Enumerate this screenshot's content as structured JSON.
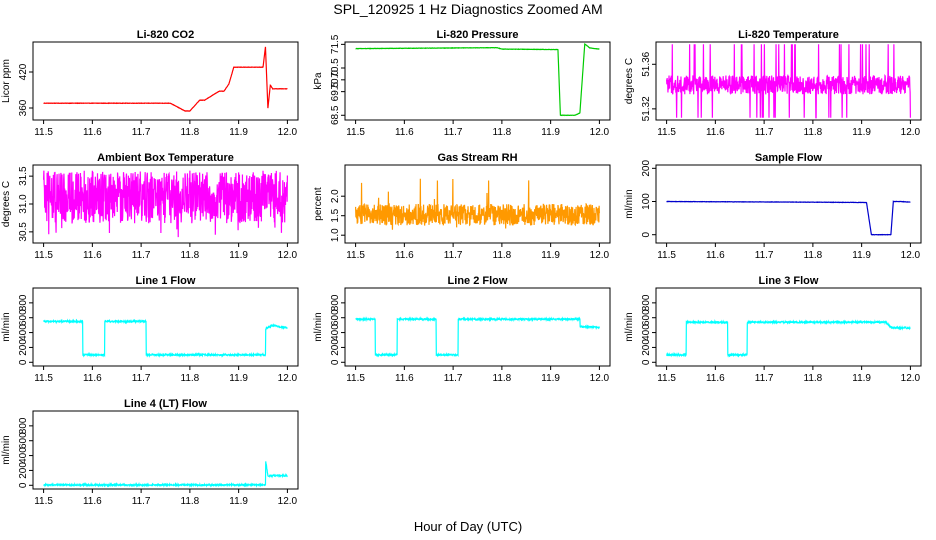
{
  "title": "SPL_120925  1 Hz Diagnostics Zoomed AM",
  "xlabel": "Hour of Day (UTC)",
  "chart_data": [
    {
      "type": "line",
      "title": "Li-820 CO2",
      "ylabel": "Licor ppm",
      "color": "#ff0000",
      "xlim": [
        11.5,
        12.0
      ],
      "ylim": [
        340,
        470
      ],
      "xticks": [
        "11.5",
        "11.6",
        "11.7",
        "11.8",
        "11.9",
        "12.0"
      ],
      "yticks": [
        "360",
        "420"
      ],
      "series": [
        {
          "x": [
            11.5,
            11.75,
            11.76,
            11.79,
            11.8,
            11.82,
            11.83,
            11.86,
            11.87,
            11.88,
            11.89,
            11.95,
            11.955,
            11.96,
            11.965,
            11.97,
            12.0
          ],
          "y": [
            368,
            368,
            368,
            355,
            355,
            373,
            373,
            388,
            388,
            400,
            428,
            428,
            462,
            360,
            398,
            392,
            392
          ]
        }
      ]
    },
    {
      "type": "line",
      "title": "Li-820 Pressure",
      "ylabel": "kPa",
      "color": "#00cc00",
      "xlim": [
        11.5,
        12.0
      ],
      "ylim": [
        68.3,
        71.6
      ],
      "xticks": [
        "11.5",
        "11.6",
        "11.7",
        "11.8",
        "11.9",
        "12.0"
      ],
      "yticks": [
        "68.5",
        "69.5",
        "70.0",
        "70.5",
        "71.5"
      ],
      "series": [
        {
          "x": [
            11.5,
            11.79,
            11.8,
            11.915,
            11.92,
            11.925,
            11.95,
            11.96,
            11.97,
            11.98,
            12.0
          ],
          "y": [
            71.32,
            71.36,
            71.3,
            71.28,
            68.5,
            68.5,
            68.5,
            68.6,
            71.52,
            71.35,
            71.3
          ]
        }
      ]
    },
    {
      "type": "line",
      "title": "Li-820 Temperature",
      "ylabel": "degrees C",
      "color": "#ff00ff",
      "xlim": [
        11.5,
        12.0
      ],
      "ylim": [
        51.31,
        51.38
      ],
      "xticks": [
        "11.5",
        "11.6",
        "11.7",
        "11.8",
        "11.9",
        "12.0"
      ],
      "yticks": [
        "51.32",
        "51.36"
      ],
      "series": [
        {
          "x": [
            11.5,
            12.0
          ],
          "y": [
            51.33,
            51.35
          ]
        }
      ]
    },
    {
      "type": "line",
      "title": "Ambient Box Temperature",
      "ylabel": "degrees C",
      "color": "#ff00ff",
      "xlim": [
        11.5,
        12.0
      ],
      "ylim": [
        30.3,
        31.7
      ],
      "xticks": [
        "11.5",
        "11.6",
        "11.7",
        "11.8",
        "11.9",
        "12.0"
      ],
      "yticks": [
        "30.5",
        "31.0",
        "31.5"
      ],
      "series": [
        {
          "x": [
            11.5,
            12.0
          ],
          "y": [
            30.6,
            31.6
          ]
        }
      ]
    },
    {
      "type": "line",
      "title": "Gas Stream RH",
      "ylabel": "percent",
      "color": "#ff9900",
      "xlim": [
        11.5,
        12.0
      ],
      "ylim": [
        0.8,
        2.8
      ],
      "xticks": [
        "11.5",
        "11.6",
        "11.7",
        "11.8",
        "11.9",
        "12.0"
      ],
      "yticks": [
        "1.0",
        "1.5",
        "2.0"
      ],
      "series": [
        {
          "x": [
            11.5,
            12.0
          ],
          "y": [
            1.2,
            1.8
          ]
        }
      ]
    },
    {
      "type": "line",
      "title": "Sample Flow",
      "ylabel": "ml/min",
      "color": "#0000cc",
      "xlim": [
        11.5,
        12.0
      ],
      "ylim": [
        -25,
        210
      ],
      "xticks": [
        "11.5",
        "11.6",
        "11.7",
        "11.8",
        "11.9",
        "12.0"
      ],
      "yticks": [
        "0",
        "100",
        "200"
      ],
      "series": [
        {
          "x": [
            11.5,
            11.8,
            11.91,
            11.92,
            11.96,
            11.965,
            11.98,
            12.0
          ],
          "y": [
            100,
            98,
            97,
            0,
            0,
            100,
            100,
            98
          ]
        }
      ]
    },
    {
      "type": "line",
      "title": "Line 1 Flow",
      "ylabel": "ml/min",
      "color": "#00ffff",
      "xlim": [
        11.5,
        12.0
      ],
      "ylim": [
        -50,
        1000
      ],
      "xticks": [
        "11.5",
        "11.6",
        "11.7",
        "11.8",
        "11.9",
        "12.0"
      ],
      "yticks": [
        "0",
        "200",
        "400",
        "600",
        "800"
      ],
      "series": [
        {
          "x": [
            11.5,
            11.58,
            11.58,
            11.625,
            11.625,
            11.71,
            11.71,
            11.955,
            11.955,
            11.97,
            12.0
          ],
          "y": [
            550,
            550,
            100,
            100,
            550,
            550,
            100,
            100,
            450,
            500,
            460
          ]
        }
      ]
    },
    {
      "type": "line",
      "title": "Line 2 Flow",
      "ylabel": "ml/min",
      "color": "#00ffff",
      "xlim": [
        11.5,
        12.0
      ],
      "ylim": [
        -50,
        1000
      ],
      "xticks": [
        "11.5",
        "11.6",
        "11.7",
        "11.8",
        "11.9",
        "12.0"
      ],
      "yticks": [
        "0",
        "200",
        "400",
        "600",
        "800"
      ],
      "series": [
        {
          "x": [
            11.5,
            11.54,
            11.54,
            11.585,
            11.585,
            11.665,
            11.665,
            11.71,
            11.71,
            11.96,
            11.96,
            12.0
          ],
          "y": [
            580,
            580,
            100,
            100,
            580,
            580,
            100,
            100,
            580,
            580,
            480,
            470
          ]
        }
      ]
    },
    {
      "type": "line",
      "title": "Line 3 Flow",
      "ylabel": "ml/min",
      "color": "#00ffff",
      "xlim": [
        11.5,
        12.0
      ],
      "ylim": [
        -50,
        1000
      ],
      "xticks": [
        "11.5",
        "11.6",
        "11.7",
        "11.8",
        "11.9",
        "12.0"
      ],
      "yticks": [
        "0",
        "200",
        "400",
        "600",
        "800"
      ],
      "series": [
        {
          "x": [
            11.5,
            11.54,
            11.54,
            11.625,
            11.625,
            11.665,
            11.665,
            11.95,
            11.96,
            12.0
          ],
          "y": [
            100,
            100,
            540,
            540,
            100,
            100,
            540,
            540,
            470,
            460
          ]
        }
      ]
    },
    {
      "type": "line",
      "title": "Line 4 (LT) Flow",
      "ylabel": "ml/min",
      "color": "#00ffff",
      "xlim": [
        11.5,
        12.0
      ],
      "ylim": [
        -50,
        1000
      ],
      "xticks": [
        "11.5",
        "11.6",
        "11.7",
        "11.8",
        "11.9",
        "12.0"
      ],
      "yticks": [
        "0",
        "200",
        "400",
        "600",
        "800"
      ],
      "series": [
        {
          "x": [
            11.5,
            11.955,
            11.955,
            11.96,
            11.965,
            12.0
          ],
          "y": [
            5,
            5,
            350,
            130,
            130,
            130
          ]
        }
      ]
    }
  ]
}
